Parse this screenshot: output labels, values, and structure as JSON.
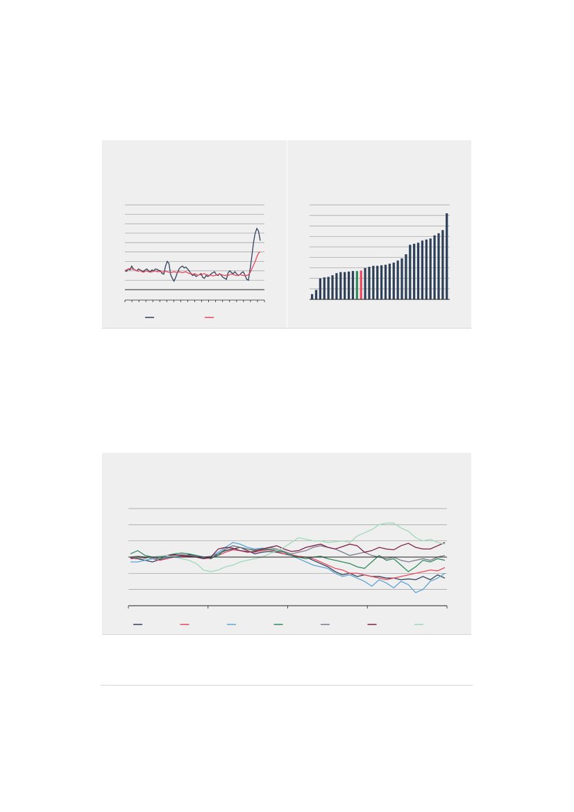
{
  "colors": {
    "navy": "#2e4057",
    "red": "#e8475f",
    "blue": "#5ba4d4",
    "green": "#2f8a5c",
    "grey": "#7a7a8c",
    "maroon": "#7a1f45",
    "mint": "#9ed9bb",
    "grid": "#9a9a9a",
    "axis": "#222222"
  },
  "chart_data": [
    {
      "type": "line",
      "grid": true,
      "gridlines": 9,
      "x": [
        0,
        1,
        2,
        3,
        4,
        5,
        6,
        7,
        8,
        9,
        10,
        11,
        12,
        13,
        14,
        15,
        16,
        17,
        18,
        19,
        20,
        21,
        22,
        23,
        24,
        25,
        26,
        27,
        28,
        29,
        30,
        31,
        32,
        33,
        34,
        35,
        36,
        37,
        38,
        39,
        40,
        41,
        42,
        43,
        44,
        45,
        46,
        47,
        48,
        49,
        50,
        51,
        52,
        53,
        54,
        55,
        56,
        57,
        58,
        59,
        60,
        61,
        62,
        63,
        64,
        65,
        66,
        67,
        68,
        69,
        70,
        71,
        72,
        73,
        74,
        75,
        76,
        77,
        78,
        79,
        80
      ],
      "ylim": [
        0,
        9
      ],
      "xticks": 21,
      "series": [
        {
          "color_key": "navy",
          "values": [
            1.0,
            0.95,
            1.2,
            1.1,
            1.5,
            1.2,
            1.1,
            1.0,
            1.2,
            1.1,
            1.0,
            0.95,
            1.1,
            1.2,
            1.0,
            0.9,
            1.1,
            1.0,
            1.2,
            1.15,
            1.05,
            1.0,
            0.7,
            0.65,
            1.5,
            2.0,
            1.8,
            0.6,
            0.2,
            -0.1,
            0.3,
            0.8,
            1.2,
            1.4,
            1.5,
            1.3,
            1.4,
            1.2,
            1.0,
            0.7,
            0.5,
            0.6,
            0.4,
            0.5,
            0.6,
            0.7,
            0.3,
            0.2,
            0.5,
            0.4,
            0.5,
            0.7,
            0.8,
            0.9,
            0.6,
            0.5,
            0.7,
            0.5,
            0.3,
            0.2,
            0.1,
            0.8,
            1.0,
            0.8,
            0.7,
            0.9,
            0.7,
            0.5,
            0.6,
            0.8,
            0.9,
            0.5,
            0.1,
            0.0,
            1.2,
            2.5,
            4.0,
            5.0,
            5.5,
            5.2,
            4.2
          ]
        },
        {
          "color_key": "red",
          "values": [
            1.05,
            1.1,
            1.2,
            1.25,
            1.2,
            1.15,
            1.1,
            1.0,
            0.95,
            1.05,
            0.9,
            0.85,
            0.95,
            1.0,
            0.9,
            0.85,
            0.9,
            0.95,
            1.0,
            0.9,
            0.95,
            0.9,
            0.85,
            0.9,
            0.95,
            0.9,
            0.85,
            0.8,
            0.85,
            0.9,
            0.85,
            0.8,
            0.9,
            0.85,
            0.8,
            0.85,
            0.9,
            0.8,
            0.7,
            0.75,
            0.6,
            0.7,
            0.65,
            0.5,
            0.6,
            0.55,
            0.65,
            0.7,
            0.6,
            0.55,
            0.5,
            0.55,
            0.45,
            0.5,
            0.55,
            0.6,
            0.65,
            0.6,
            0.55,
            0.5,
            0.55,
            0.5,
            0.6,
            0.65,
            0.6,
            0.55,
            0.5,
            0.55,
            0.6,
            0.55,
            0.5,
            0.55,
            0.5,
            0.6,
            0.8,
            1.2,
            1.6,
            2.0,
            2.5,
            2.9,
            3.0
          ]
        }
      ],
      "legend": [
        {
          "color_key": "navy"
        },
        {
          "color_key": "red"
        }
      ]
    },
    {
      "type": "bar",
      "grid": true,
      "gridlines": 9,
      "ylim": [
        0,
        9
      ],
      "values": [
        0.5,
        0.9,
        2.0,
        2.1,
        2.15,
        2.3,
        2.5,
        2.6,
        2.6,
        2.65,
        2.7,
        2.7,
        2.75,
        3.0,
        3.1,
        3.2,
        3.2,
        3.25,
        3.3,
        3.4,
        3.5,
        3.7,
        3.9,
        4.3,
        5.2,
        5.3,
        5.4,
        5.6,
        5.7,
        5.8,
        6.1,
        6.3,
        6.6,
        8.2
      ],
      "bar_color_keys": [
        "navy",
        "navy",
        "navy",
        "navy",
        "navy",
        "navy",
        "navy",
        "navy",
        "navy",
        "navy",
        "navy",
        "green",
        "red",
        "navy",
        "navy",
        "navy",
        "navy",
        "navy",
        "navy",
        "navy",
        "navy",
        "navy",
        "navy",
        "navy",
        "navy",
        "navy",
        "navy",
        "navy",
        "navy",
        "navy",
        "navy",
        "navy",
        "navy",
        "navy"
      ]
    },
    {
      "type": "line",
      "grid": true,
      "ylim": [
        -3,
        3
      ],
      "gridlines": [
        3,
        2,
        1,
        0,
        -1,
        -2
      ],
      "zero_line": true,
      "xticks": 5,
      "series": [
        {
          "color_key": "navy",
          "values": [
            -0.05,
            -0.1,
            -0.2,
            -0.3,
            -0.15,
            -0.05,
            0.0,
            0.05,
            0.15,
            0.1,
            0.0,
            -0.1,
            0.2,
            0.4,
            0.5,
            0.6,
            0.4,
            0.2,
            0.3,
            0.35,
            0.3,
            0.2,
            0.1,
            0.0,
            0.0,
            -0.2,
            -0.4,
            -0.6,
            -0.9,
            -1.1,
            -1.0,
            -1.2,
            -1.1,
            -1.2,
            -1.2,
            -1.3,
            -1.3,
            -1.4,
            -1.35,
            -1.4,
            -1.2,
            -1.4,
            -1.1,
            -1.3
          ]
        },
        {
          "color_key": "red",
          "values": [
            -0.1,
            -0.05,
            0.0,
            -0.1,
            -0.2,
            -0.1,
            0.0,
            0.05,
            0.0,
            0.0,
            -0.1,
            -0.05,
            0.1,
            0.3,
            0.45,
            0.4,
            0.35,
            0.3,
            0.4,
            0.45,
            0.35,
            0.2,
            0.15,
            0.05,
            0.0,
            -0.1,
            -0.3,
            -0.5,
            -0.7,
            -0.8,
            -1.0,
            -1.0,
            -1.1,
            -1.2,
            -1.3,
            -1.4,
            -1.3,
            -1.2,
            -1.1,
            -1.0,
            -0.9,
            -0.8,
            -0.85,
            -0.65
          ]
        },
        {
          "color_key": "blue",
          "values": [
            -0.3,
            -0.3,
            -0.2,
            -0.1,
            -0.1,
            -0.05,
            0.0,
            0.1,
            0.05,
            0.0,
            -0.05,
            0.05,
            0.3,
            0.6,
            0.9,
            0.8,
            0.6,
            0.5,
            0.55,
            0.5,
            0.4,
            0.3,
            0.1,
            -0.1,
            -0.3,
            -0.5,
            -0.6,
            -0.7,
            -1.0,
            -1.2,
            -1.1,
            -1.3,
            -1.5,
            -1.8,
            -1.4,
            -1.6,
            -1.9,
            -1.5,
            -1.7,
            -2.2,
            -2.0,
            -1.5,
            -1.3,
            -1.0
          ]
        },
        {
          "color_key": "green",
          "values": [
            0.2,
            0.4,
            0.1,
            0.0,
            -0.1,
            0.1,
            0.2,
            0.25,
            0.2,
            0.1,
            0.0,
            -0.05,
            0.1,
            0.5,
            0.7,
            0.6,
            0.5,
            0.4,
            0.45,
            0.5,
            0.4,
            0.3,
            0.1,
            0.0,
            -0.1,
            0.0,
            0.05,
            -0.1,
            -0.2,
            -0.3,
            -0.4,
            -0.6,
            -0.7,
            -0.3,
            0.1,
            -0.2,
            -0.1,
            -0.5,
            -0.9,
            -0.6,
            -0.2,
            -0.3,
            -0.1,
            -0.2
          ]
        },
        {
          "color_key": "grey",
          "values": [
            0.0,
            0.05,
            0.0,
            -0.05,
            0.0,
            0.1,
            0.1,
            0.15,
            0.1,
            0.05,
            0.0,
            0.05,
            0.2,
            0.5,
            0.7,
            0.6,
            0.5,
            0.45,
            0.5,
            0.6,
            0.5,
            0.35,
            0.2,
            0.3,
            0.4,
            0.6,
            0.7,
            0.6,
            0.5,
            0.3,
            0.1,
            0.2,
            0.3,
            0.1,
            0.0,
            -0.1,
            0.0,
            -0.2,
            -0.3,
            -0.2,
            -0.1,
            -0.2,
            0.0,
            0.1
          ]
        },
        {
          "color_key": "maroon",
          "values": [
            -0.05,
            -0.1,
            -0.05,
            0.0,
            0.05,
            0.1,
            0.15,
            0.1,
            0.05,
            0.0,
            -0.1,
            0.0,
            0.5,
            0.6,
            0.55,
            0.4,
            0.3,
            0.35,
            0.5,
            0.6,
            0.7,
            0.5,
            0.35,
            0.4,
            0.6,
            0.7,
            0.8,
            0.6,
            0.5,
            0.65,
            0.8,
            0.7,
            0.3,
            0.4,
            0.6,
            0.5,
            0.45,
            0.7,
            0.85,
            0.6,
            0.5,
            0.5,
            0.7,
            0.9
          ]
        },
        {
          "color_key": "mint",
          "values": [
            0.0,
            -0.05,
            -0.1,
            0.0,
            0.05,
            0.1,
            0.0,
            -0.1,
            -0.2,
            -0.4,
            -0.8,
            -0.9,
            -0.8,
            -0.6,
            -0.5,
            -0.3,
            -0.2,
            -0.1,
            0.0,
            0.2,
            0.4,
            0.6,
            0.9,
            1.2,
            1.1,
            1.0,
            1.0,
            0.9,
            0.95,
            1.0,
            0.9,
            1.3,
            1.5,
            1.7,
            2.0,
            2.1,
            2.1,
            1.8,
            1.6,
            1.2,
            1.0,
            1.1,
            0.9,
            0.8
          ]
        }
      ],
      "legend": [
        {
          "color_key": "navy"
        },
        {
          "color_key": "red"
        },
        {
          "color_key": "blue"
        },
        {
          "color_key": "green"
        },
        {
          "color_key": "grey"
        },
        {
          "color_key": "maroon"
        },
        {
          "color_key": "mint"
        }
      ]
    }
  ]
}
